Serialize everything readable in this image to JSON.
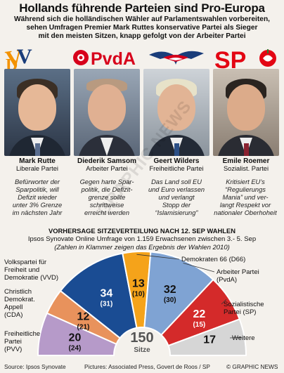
{
  "header": {
    "title": "Hollands führende Parteien sind Pro-Europa",
    "subtitle_lines": [
      "Während sich die holländischen Wähler auf Parlamentswahlen vorbereiten,",
      "sehen Umfragen Premier Mark Ruttes konservative Partei als Sieger",
      "mit den meisten Sitzen, knapp gefolgt von der Arbeiter Partei"
    ]
  },
  "logos": {
    "vvd": "VVD",
    "pvda": "PvdA",
    "sp": "SP"
  },
  "colors": {
    "vvd": "#f39200",
    "pvda": "#d7001b",
    "pvv": "#1a3d7a",
    "sp": "#e30613"
  },
  "politicians": [
    {
      "name": "Mark Rutte",
      "party": "Liberale Partei",
      "desc": [
        "Befürworter der",
        "Sparpolitik, will",
        "Defizit wieder",
        "unter 3% Grenze",
        "im nächsten Jahr"
      ]
    },
    {
      "name": "Diederik Samsom",
      "party": "Arbeiter Partei",
      "desc": [
        "Gegen harte Spar-",
        "politik, die Defizit-",
        "grenze sollte",
        "schrittweise",
        "erreicht werden"
      ]
    },
    {
      "name": "Geert Wilders",
      "party": "Freiheitliche Partei",
      "desc": [
        "Das Land soll EU",
        "und Euro verlassen",
        "und verlangt",
        "Stopp der",
        "“Islamisierung”"
      ]
    },
    {
      "name": "Emile Roemer",
      "party": "Sozialist. Partei",
      "desc": [
        "Kritisiert EU’s",
        "“Regulierungs",
        "Mania” und ver-",
        "langt Respekt vor",
        "nationaler Oberhoheit"
      ]
    }
  ],
  "chart": {
    "title": "VORHERSAGE SITZEVERTEILUNG NACH 12. SEP WAHLEN",
    "subtitle": "Ipsos Synovate Online Umfrage von 1.159 Erwachsenen zwischen 3.- 5. Sep",
    "note": "(Zahlen in Klammer zeigen das Ergebnis der Wahlen 2010)",
    "center_value": "150",
    "center_label": "Sitze"
  },
  "chart_data": {
    "type": "pie",
    "subtype": "semicircle",
    "total": 150,
    "series": [
      {
        "key": "pvv",
        "label": [
          "Freiheitliche",
          "Partei",
          "(PVV)"
        ],
        "value": 20,
        "value_2010": "(24)",
        "color": "#b69ac9",
        "text_color": "#111111"
      },
      {
        "key": "cda",
        "label": [
          "Christlich",
          "Demokrat.",
          "Appell",
          "(CDA)"
        ],
        "value": 12,
        "value_2010": "(21)",
        "color": "#e8925c",
        "text_color": "#111111"
      },
      {
        "key": "vvd",
        "label": [
          "Volkspartei für",
          "Freiheit und",
          "Demokratie (VVD)"
        ],
        "value": 34,
        "value_2010": "(31)",
        "color": "#1a4c93",
        "text_color": "#ffffff"
      },
      {
        "key": "d66",
        "label": [
          "Demokraten 66 (D66)"
        ],
        "value": 13,
        "value_2010": "(10)",
        "color": "#f5a31a",
        "text_color": "#111111"
      },
      {
        "key": "pvda",
        "label": [
          "Arbeiter Partei",
          "(PvdA)"
        ],
        "value": 32,
        "value_2010": "(30)",
        "color": "#7fa3d3",
        "text_color": "#111111"
      },
      {
        "key": "sp",
        "label": [
          "Sozialistische",
          "Partei (SP)"
        ],
        "value": 22,
        "value_2010": "(15)",
        "color": "#d42a2a",
        "text_color": "#ffffff"
      },
      {
        "key": "others",
        "label": [
          "Weitere"
        ],
        "value": 17,
        "value_2010": "",
        "color": "#d6d6d6",
        "text_color": "#111111"
      }
    ]
  },
  "footer": {
    "source": "Source: Ipsos Synovate",
    "pictures": "Pictures: Associated Press, Govert de Roos / SP",
    "credit": "© GRAPHIC NEWS"
  },
  "watermark": "GRAPHIC NEWS"
}
